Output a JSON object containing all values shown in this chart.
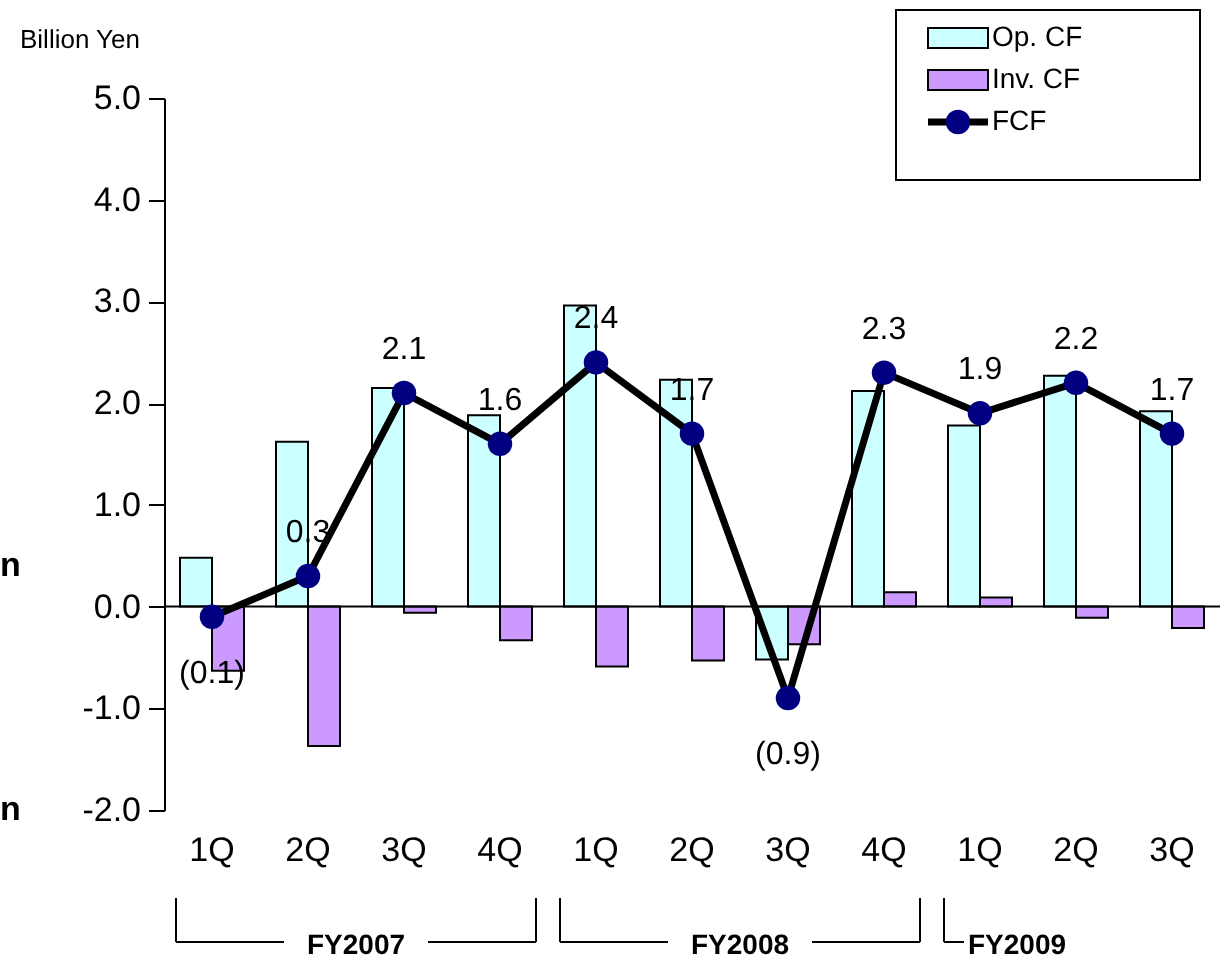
{
  "chart_data": {
    "type": "bar",
    "ylabel": "Billion Yen",
    "categories": [
      "1Q",
      "2Q",
      "3Q",
      "4Q",
      "1Q",
      "2Q",
      "3Q",
      "4Q",
      "1Q",
      "2Q",
      "3Q"
    ],
    "series": [
      {
        "name": "Op. CF",
        "color": "#ccffff",
        "values": [
          0.48,
          1.62,
          2.15,
          1.88,
          2.96,
          2.23,
          -0.52,
          2.12,
          1.78,
          2.27,
          1.92
        ]
      },
      {
        "name": "Inv. CF",
        "color": "#cc99ff",
        "values": [
          -0.63,
          -1.37,
          -0.06,
          -0.33,
          -0.59,
          -0.53,
          -0.37,
          0.14,
          0.09,
          -0.11,
          -0.21
        ]
      },
      {
        "name": "FCF",
        "type": "line",
        "color": "#000080",
        "marker": "circle",
        "values": [
          -0.1,
          0.3,
          2.1,
          1.6,
          2.4,
          1.7,
          -0.9,
          2.3,
          1.9,
          2.2,
          1.7
        ],
        "value_labels": [
          "(0.1)",
          "0.3",
          "2.1",
          "1.6",
          "2.4",
          "1.7",
          "(0.9)",
          "2.3",
          "1.9",
          "2.2",
          "1.7"
        ]
      }
    ],
    "ylim": [
      -2,
      5
    ],
    "yticks": [
      {
        "value": -2,
        "label": "-2.0"
      },
      {
        "value": -1,
        "label": "-1.0"
      },
      {
        "value": 0,
        "label": "0.0"
      },
      {
        "value": 1,
        "label": "1.0"
      },
      {
        "value": 2,
        "label": "2.0"
      },
      {
        "value": 3,
        "label": "3.0"
      },
      {
        "value": 4,
        "label": "4.0"
      },
      {
        "value": 5,
        "label": "5.0"
      }
    ],
    "annotations": [
      "FY2007",
      "FY2008",
      "FY2009",
      "n",
      "n"
    ],
    "legend": "top right"
  }
}
